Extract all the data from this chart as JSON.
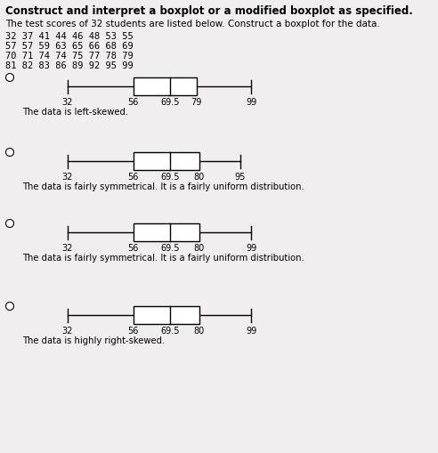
{
  "title": "Construct and interpret a boxplot or a modified boxplot as specified.",
  "subtitle": "The test scores of 32 students are listed below. Construct a boxplot for the data.",
  "data_text": "32 37 41 44 46 48 53 55\n57 57 59 63 65 66 68 69\n70 71 74 74 75 77 78 79\n81 82 83 86 89 92 95 99",
  "boxplots": [
    {
      "min": 32,
      "q1": 56,
      "median": 69.5,
      "q3": 79,
      "max": 99,
      "label": "The data is left-skewed.",
      "xmin": 22,
      "xmax": 108
    },
    {
      "min": 32,
      "q1": 56,
      "median": 69.5,
      "q3": 80,
      "max": 95,
      "label": "The data is fairly symmetrical. It is a fairly uniform distribution.",
      "xmin": 22,
      "xmax": 108
    },
    {
      "min": 32,
      "q1": 56,
      "median": 69.5,
      "q3": 80,
      "max": 99,
      "label": "The data is fairly symmetrical. It is a fairly uniform distribution.",
      "xmin": 22,
      "xmax": 108
    },
    {
      "min": 32,
      "q1": 56,
      "median": 69.5,
      "q3": 80,
      "max": 99,
      "label": "The data is highly right-skewed.",
      "xmin": 22,
      "xmax": 108
    }
  ],
  "tick_labels": [
    [
      "32",
      "56",
      "69.5",
      "79",
      "99"
    ],
    [
      "32",
      "56",
      "69.5",
      "80",
      "95"
    ],
    [
      "32",
      "56",
      "69.5",
      "80",
      "99"
    ],
    [
      "32",
      "56",
      "69.5",
      "80",
      "99"
    ]
  ],
  "bg_color": "#f0eeee",
  "font_size_title": 8.5,
  "font_size_subtitle": 7.5,
  "font_size_data": 7.5,
  "font_size_label": 7.2,
  "font_size_tick": 7.0
}
